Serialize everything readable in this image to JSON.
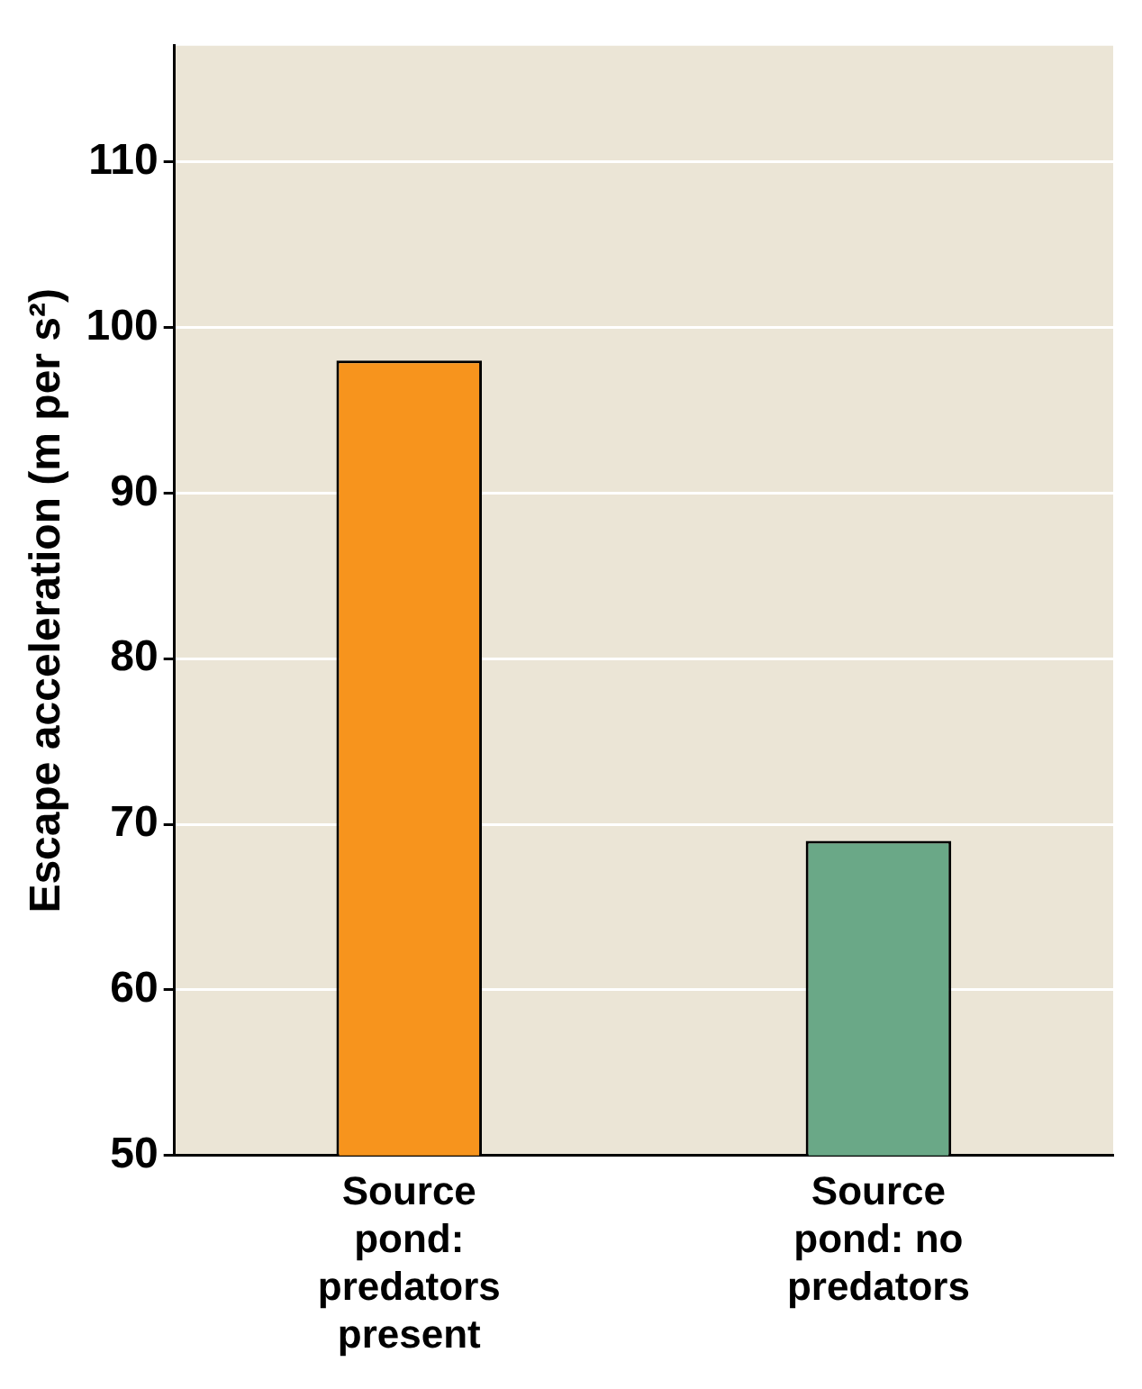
{
  "chart_data": {
    "type": "bar",
    "categories": [
      "Source pond: predators present",
      "Source pond: no predators"
    ],
    "values": [
      98,
      69
    ],
    "colors": [
      "#f7941d",
      "#6aa887"
    ],
    "ylabel": "Escape acceleration (m per s²)",
    "ylim": [
      50,
      117
    ],
    "yticks": [
      50,
      60,
      70,
      80,
      90,
      100,
      110
    ],
    "grid": "y",
    "legend": false
  }
}
